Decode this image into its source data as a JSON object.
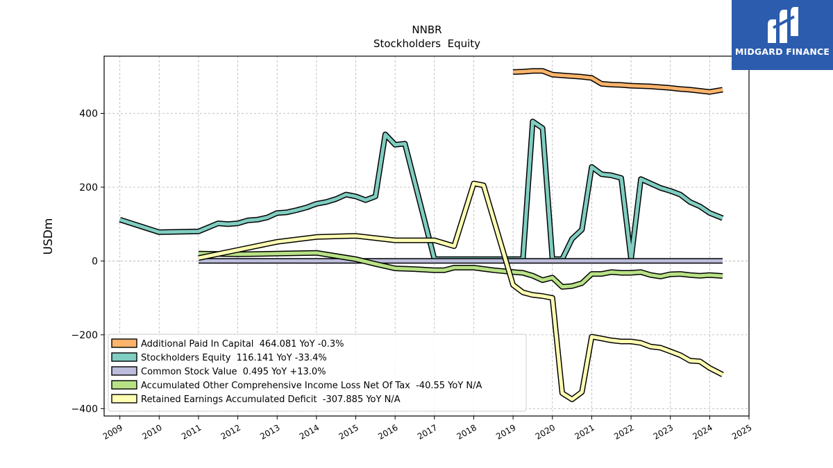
{
  "chart_data": {
    "type": "line",
    "title": "NNBR",
    "subtitle": "Stockholders  Equity",
    "ylabel": "USDm",
    "xlabel": "",
    "xlim": [
      2008.6,
      2025.0
    ],
    "ylim": [
      -420,
      555
    ],
    "yticks": [
      -400,
      -200,
      0,
      200,
      400
    ],
    "ytick_labels": [
      "−400",
      "−200",
      "0",
      "200",
      "400"
    ],
    "xticks": [
      2009,
      2010,
      2011,
      2012,
      2013,
      2014,
      2015,
      2016,
      2017,
      2018,
      2019,
      2020,
      2021,
      2022,
      2023,
      2024,
      2025
    ],
    "xtick_labels": [
      "2009",
      "2010",
      "2011",
      "2012",
      "2013",
      "2014",
      "2015",
      "2016",
      "2017",
      "2018",
      "2019",
      "2020",
      "2021",
      "2022",
      "2023",
      "2024",
      "2025"
    ],
    "grid": true,
    "legend_position": "lower-left",
    "series": [
      {
        "name": "Additional Paid In Capital",
        "legend": "Additional Paid In Capital  464.081 YoY -0.3%",
        "color": "#fdb46c",
        "x": [
          2019.0,
          2019.25,
          2019.5,
          2019.75,
          2020.0,
          2020.25,
          2020.5,
          2020.75,
          2021.0,
          2021.25,
          2021.5,
          2021.75,
          2022.0,
          2022.25,
          2022.5,
          2022.75,
          2023.0,
          2023.25,
          2023.5,
          2023.75,
          2024.0,
          2024.33
        ],
        "y": [
          512,
          513,
          515,
          515,
          505,
          503,
          501,
          499,
          496,
          480,
          478,
          477,
          475,
          474,
          473,
          471,
          469,
          466,
          464,
          461,
          458,
          464.081
        ]
      },
      {
        "name": "Stockholders Equity",
        "legend": "Stockholders Equity  116.141 YoY -33.4%",
        "color": "#80cdc1",
        "x": [
          2009.0,
          2010.0,
          2011.0,
          2011.5,
          2011.75,
          2012.0,
          2012.25,
          2012.5,
          2012.75,
          2013.0,
          2013.25,
          2013.5,
          2013.75,
          2014.0,
          2014.25,
          2014.5,
          2014.75,
          2015.0,
          2015.25,
          2015.5,
          2015.75,
          2016.0,
          2016.25,
          2017.0,
          2019.25,
          2019.5,
          2019.75,
          2020.0,
          2020.25,
          2020.5,
          2020.75,
          2021.0,
          2021.25,
          2021.5,
          2021.75,
          2022.0,
          2022.25,
          2022.5,
          2022.75,
          2023.0,
          2023.25,
          2023.5,
          2023.75,
          2024.0,
          2024.33
        ],
        "y": [
          112,
          78,
          80,
          102,
          100,
          102,
          110,
          112,
          118,
          130,
          132,
          138,
          145,
          155,
          160,
          168,
          180,
          175,
          165,
          175,
          343,
          315,
          318,
          5,
          5,
          378,
          360,
          5,
          5,
          60,
          85,
          255,
          235,
          232,
          225,
          5,
          222,
          210,
          198,
          190,
          180,
          160,
          148,
          130,
          116.141
        ]
      },
      {
        "name": "Common Stock Value",
        "legend": "Common Stock Value  0.495 YoY +13.0%",
        "color": "#bcbddc",
        "x": [
          2011.0,
          2024.33
        ],
        "y": [
          0.4,
          0.495
        ]
      },
      {
        "name": "Accumulated Other Comprehensive Income Loss Net Of Tax",
        "legend": "Accumulated Other Comprehensive Income Loss Net Of Tax  -40.55 YoY N/A",
        "color": "#b8e186",
        "x": [
          2011.0,
          2012.0,
          2013.0,
          2014.0,
          2015.0,
          2015.5,
          2016.0,
          2016.5,
          2017.0,
          2017.25,
          2017.5,
          2018.0,
          2018.5,
          2019.0,
          2019.25,
          2019.5,
          2019.75,
          2020.0,
          2020.25,
          2020.5,
          2020.75,
          2021.0,
          2021.25,
          2021.5,
          2021.75,
          2022.0,
          2022.25,
          2022.5,
          2022.75,
          2023.0,
          2023.25,
          2023.5,
          2023.75,
          2024.0,
          2024.33
        ],
        "y": [
          20,
          18,
          20,
          22,
          5,
          -8,
          -20,
          -22,
          -25,
          -25,
          -18,
          -18,
          -25,
          -30,
          -32,
          -40,
          -52,
          -45,
          -70,
          -68,
          -60,
          -35,
          -35,
          -30,
          -32,
          -32,
          -30,
          -38,
          -42,
          -36,
          -35,
          -38,
          -40,
          -38,
          -40.55
        ]
      },
      {
        "name": "Retained Earnings Accumulated Deficit",
        "legend": "Retained Earnings Accumulated Deficit  -307.885 YoY N/A",
        "color": "#ffffb3",
        "x": [
          2011.0,
          2012.0,
          2013.0,
          2014.0,
          2015.0,
          2016.0,
          2017.0,
          2017.5,
          2018.0,
          2018.25,
          2019.0,
          2019.25,
          2019.5,
          2019.75,
          2020.0,
          2020.25,
          2020.5,
          2020.75,
          2021.0,
          2021.25,
          2021.5,
          2021.75,
          2022.0,
          2022.25,
          2022.5,
          2022.75,
          2023.0,
          2023.25,
          2023.5,
          2023.75,
          2024.0,
          2024.33
        ],
        "y": [
          8,
          30,
          52,
          65,
          68,
          56,
          56,
          40,
          210,
          205,
          -65,
          -85,
          -92,
          -95,
          -100,
          -358,
          -375,
          -355,
          -205,
          -210,
          -215,
          -218,
          -218,
          -222,
          -232,
          -235,
          -245,
          -255,
          -270,
          -272,
          -290,
          -307.885
        ]
      }
    ]
  },
  "logo": {
    "text": "MIDGARD FINANCE"
  }
}
